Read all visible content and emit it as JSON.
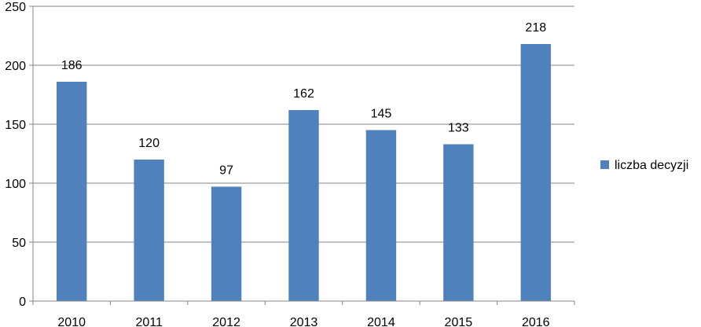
{
  "chart_data": {
    "type": "bar",
    "categories": [
      "2010",
      "2011",
      "2012",
      "2013",
      "2014",
      "2015",
      "2016"
    ],
    "series": [
      {
        "name": "liczba decyzji",
        "values": [
          186,
          120,
          97,
          162,
          145,
          133,
          218
        ]
      }
    ],
    "ylim": [
      0,
      250
    ],
    "yticks": [
      "0",
      "50",
      "100",
      "150",
      "200",
      "250"
    ],
    "grid": true,
    "legend_position": "right",
    "colors": {
      "bar": "#4F81BD",
      "grid": "#868686",
      "axis": "#868686"
    }
  }
}
